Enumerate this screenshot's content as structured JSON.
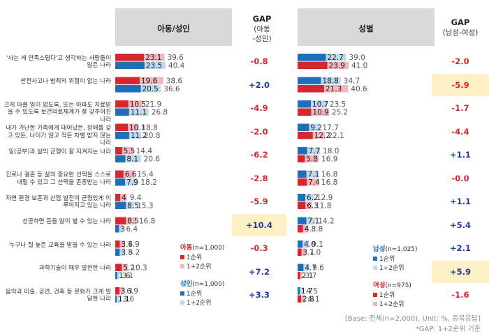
{
  "headers": {
    "left": "아동/성인",
    "gap_left_title": "GAP",
    "gap_left_sub1": "(아동",
    "gap_left_sub2": "-성인)",
    "right": "성별",
    "gap_right_title": "GAP",
    "gap_right_sub": "(남성-여성)"
  },
  "colors": {
    "blue_dark": "#1f6fb8",
    "blue_light": "#bcd9ef",
    "red_dark": "#d7262e",
    "red_light": "#f4b6bd",
    "gap_positive": "#1f3a9e",
    "gap_negative": "#d7262e",
    "highlight": "#fdf0c4",
    "header_bg": "#d9d9d9"
  },
  "legend_left": {
    "group1_title": "아동",
    "group1_n": "(n=1,000)",
    "group1_rank1": "1순위",
    "group1_rank12": "1+2순위",
    "group2_title": "성인",
    "group2_n": "(n=1,000)",
    "group2_rank1": "1순위",
    "group2_rank12": "1+2순위"
  },
  "legend_right": {
    "group1_title": "남성",
    "group1_n": "(n=1,025)",
    "group1_rank1": "1순위",
    "group1_rank12": "1+2순위",
    "group2_title": "여성",
    "group2_n": "(n=975)",
    "group2_rank1": "1순위",
    "group2_rank12": "1+2순위"
  },
  "footnote": {
    "base": "[Base: 전체(n=2,000), Unit: %, 중복응답]",
    "gap_note": "*GAP: 1+2순위 기준"
  },
  "chart_data": [
    {
      "type": "bar",
      "panel": "아동/성인",
      "categories": [
        "'사는 게 만족스럽다'고 생각하는 사람들이 많은 나라",
        "안전사고나 범죄의 위험이 없는 나라",
        "크게 아플 일이 없도록, 또는 아파도 치료받을 수 있도록 보건의료체계가 잘 갖추어진 나라",
        "내가 가난한 가족에게 태어났든, 장애를 갖고 있든, 나이가 많고 적든 차별 받지 않는 나라",
        "일(공부)과 삶의 균형이 잘 지켜지는 나라",
        "진로나 결혼 등 삶의 중요한 선택을 스스로 내릴 수 있고 그 선택을 존중받는 나라",
        "자연 환경 보존과 산업 발전이 균형있게 이루어지고 있는 나라",
        "성공하면 돈을 많이 벌 수 있는 나라",
        "누구나 질 높은 교육을 받을 수 있는 나라",
        "과학기술이 매우 발전한 나라",
        "음악과 미술, 공연, 건축 등 문화가 크게 발달한 나라"
      ],
      "series": [
        {
          "name": "아동 1순위",
          "values": [
            23.1,
            19.6,
            10.5,
            10.1,
            5.5,
            6.6,
            4.0,
            8.5,
            3.6,
            5.2,
            3.3
          ]
        },
        {
          "name": "아동 1+2순위",
          "values": [
            39.6,
            38.6,
            21.9,
            18.8,
            14.4,
            15.4,
            9.4,
            16.8,
            7.9,
            10.3,
            6.9
          ]
        },
        {
          "name": "성인 1순위",
          "values": [
            23.5,
            20.5,
            11.1,
            11.2,
            8.1,
            7.9,
            8.5,
            3.0,
            3.5,
            1.6,
            1.1
          ]
        },
        {
          "name": "성인 1+2순위",
          "values": [
            40.4,
            36.6,
            26.8,
            20.8,
            20.6,
            18.2,
            15.3,
            6.4,
            8.2,
            3.1,
            3.6
          ]
        }
      ],
      "value_labels_rank1_child": [
        "23.1",
        "19.6",
        "10.5",
        "10.1",
        "5.5",
        "6.6",
        "4",
        "8.5",
        "3.6",
        "5.2",
        "3.3"
      ],
      "value_labels_rank1_adult": [
        "23.5",
        "20.5",
        "11.1",
        "11.2",
        "8.1",
        "7.9",
        "8.5",
        "3",
        "3.5",
        "1.6",
        "1.1"
      ],
      "gap_labels": [
        "-0.8",
        "+2.0",
        "-4.9",
        "-2.0",
        "-6.2",
        "-2.8",
        "-5.9",
        "+10.4",
        "-0.3",
        "+7.2",
        "+3.3"
      ],
      "gap_values": [
        -0.8,
        2.0,
        -4.9,
        -2.0,
        -6.2,
        -2.8,
        -5.9,
        10.4,
        -0.3,
        7.2,
        3.3
      ],
      "highlighted_gap_index": [
        7
      ],
      "xlim": [
        0,
        45
      ]
    },
    {
      "type": "bar",
      "panel": "성별",
      "categories_same_as_left": true,
      "series": [
        {
          "name": "남성 1순위",
          "values": [
            22.7,
            18.8,
            10.7,
            9.2,
            7.7,
            7.1,
            6.2,
            7.1,
            4.0,
            4.7,
            1.7
          ]
        },
        {
          "name": "남성 1+2순위",
          "values": [
            39.0,
            34.7,
            23.5,
            17.7,
            18.0,
            16.8,
            12.9,
            14.2,
            9.1,
            9.6,
            4.5
          ]
        },
        {
          "name": "여성 1순위",
          "values": [
            23.9,
            21.3,
            10.9,
            12.2,
            5.8,
            7.4,
            6.3,
            4.3,
            3.1,
            2.1,
            2.8
          ]
        },
        {
          "name": "여성 1+2순위",
          "values": [
            41.0,
            40.6,
            25.2,
            22.1,
            16.9,
            16.8,
            11.8,
            8.8,
            7.0,
            3.7,
            6.1
          ]
        }
      ],
      "value_labels_rank1_male": [
        "22.7",
        "18.8",
        "10.7",
        "9.2",
        "7.7",
        "7.1",
        "6.2",
        "7.1",
        "4.0",
        "4.7",
        "1.7"
      ],
      "value_labels_rank1_female": [
        "23.9",
        "21.3",
        "10.9",
        "12.2",
        "5.8",
        "7.4",
        "6.3",
        "4.3",
        "3.1",
        "2.1",
        "2.8"
      ],
      "value_labels_rank12_male": [
        "39.0",
        "34.7",
        "23.5",
        "17.7",
        "18.0",
        "16.8",
        "12.9",
        "14.2",
        "9.1",
        "9.6",
        "4.5"
      ],
      "value_labels_rank12_female": [
        "41.0",
        "40.6",
        "25.2",
        "22.1",
        "16.9",
        "16.8",
        "11.8",
        "8.8",
        "7.0",
        "3.7",
        "6.1"
      ],
      "gap_labels": [
        "-2.0",
        "-5.9",
        "-1.7",
        "-4.4",
        "+1.1",
        "-0.0",
        "+1.1",
        "+5.4",
        "+2.1",
        "+5.9",
        "-1.6"
      ],
      "gap_values": [
        -2.0,
        -5.9,
        -1.7,
        -4.4,
        1.1,
        -0.0,
        1.1,
        5.4,
        2.1,
        5.9,
        -1.6
      ],
      "highlighted_gap_index": [
        1,
        9
      ],
      "xlim": [
        0,
        45
      ]
    }
  ]
}
